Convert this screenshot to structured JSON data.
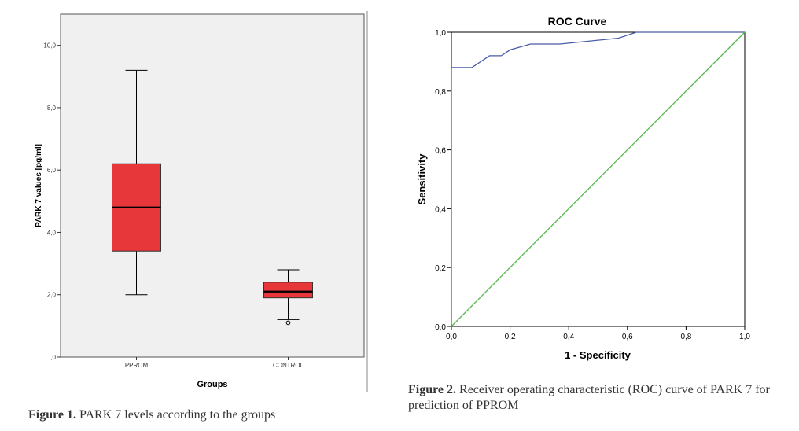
{
  "chart_data": [
    {
      "type": "boxplot",
      "xlabel": "Groups",
      "ylabel": "PARK 7 values [pg/ml]",
      "ylim": [
        0,
        11
      ],
      "yticks": [
        0,
        2,
        4,
        6,
        8,
        10
      ],
      "ytick_labels": [
        ",0",
        "2,0",
        "4,0",
        "6,0",
        "8,0",
        "10,0"
      ],
      "categories": [
        "PPROM",
        "CONTROL"
      ],
      "boxes": [
        {
          "name": "PPROM",
          "whisker_low": 2.0,
          "q1": 3.4,
          "median": 4.8,
          "q3": 6.2,
          "whisker_high": 9.2,
          "outliers": []
        },
        {
          "name": "CONTROL",
          "whisker_low": 1.2,
          "q1": 1.9,
          "median": 2.1,
          "q3": 2.4,
          "whisker_high": 2.8,
          "outliers": [
            1.1
          ]
        }
      ],
      "box_color": "#e8373b",
      "background": "#f0f0f0",
      "grid": false
    },
    {
      "type": "line",
      "title": "ROC Curve",
      "xlabel": "1 - Specificity",
      "ylabel": "Sensitivity",
      "xlim": [
        0,
        1
      ],
      "ylim": [
        0,
        1
      ],
      "ticks": [
        0,
        0.2,
        0.4,
        0.6,
        0.8,
        1.0
      ],
      "tick_labels": [
        "0,0",
        "0,2",
        "0,4",
        "0,6",
        "0,8",
        "1,0"
      ],
      "series": [
        {
          "color": "#4a5ca8",
          "x": [
            0,
            0,
            0.07,
            0.13,
            0.17,
            0.2,
            0.27,
            0.37,
            0.57,
            0.63,
            1.0
          ],
          "y": [
            0,
            0.88,
            0.88,
            0.92,
            0.92,
            0.94,
            0.96,
            0.96,
            0.98,
            1.0,
            1.0
          ]
        },
        {
          "color": "#55b84b",
          "x": [
            0,
            1
          ],
          "y": [
            0,
            1
          ]
        }
      ],
      "grid": false
    }
  ],
  "captions": {
    "fig1_label": "Figure 1.",
    "fig1_text": " PARK 7 levels according to the groups",
    "fig2_label": "Figure 2.",
    "fig2_text": " Receiver operating characteristic (ROC) curve of PARK 7 for prediction of PPROM"
  }
}
